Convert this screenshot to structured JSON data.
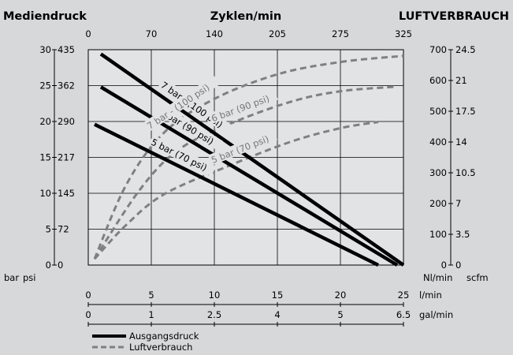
{
  "chart_data": {
    "type": "line",
    "title_left": "Mediendruck",
    "title_top": "Zyklen/min",
    "title_right": "LUFTVERBRAUCH",
    "top_axis": {
      "ticks": [
        "0",
        "70",
        "140",
        "205",
        "275",
        "325"
      ]
    },
    "left_axis": {
      "ticks_bar": [
        "0",
        "5",
        "10",
        "15",
        "20",
        "25",
        "30"
      ],
      "ticks_psi": [
        "0",
        "72",
        "145",
        "217",
        "290",
        "362",
        "435"
      ],
      "unit_bar": "bar",
      "unit_psi": "psi",
      "ylim": [
        0,
        30
      ]
    },
    "right_axis": {
      "ticks_nl": [
        "0",
        "100",
        "200",
        "300",
        "400",
        "500",
        "600",
        "700"
      ],
      "ticks_scfm": [
        "0",
        "3.5",
        "7",
        "10.5",
        "14",
        "17.5",
        "21",
        "24.5"
      ],
      "unit_nl": "Nl/min",
      "unit_scfm": "scfm",
      "ylim": [
        0,
        700
      ]
    },
    "bottom_axes": [
      {
        "ticks": [
          "0",
          "5",
          "10",
          "15",
          "20",
          "25"
        ],
        "unit": "l/min",
        "xlim": [
          0,
          25
        ]
      },
      {
        "ticks": [
          "0",
          "1",
          "2.5",
          "4",
          "5",
          "6.5"
        ],
        "unit": "gal/min",
        "xlim": [
          0,
          6.5
        ]
      }
    ],
    "xlim": [
      0,
      25
    ],
    "series": [
      {
        "name": "7 bar - (100 psi)",
        "kind": "Ausgangsdruck",
        "x": [
          1,
          25
        ],
        "y": [
          29.4,
          0
        ]
      },
      {
        "name": "6 bar (90 psi)",
        "kind": "Ausgangsdruck",
        "x": [
          1,
          24.5
        ],
        "y": [
          24.8,
          0
        ]
      },
      {
        "name": "5 bar (70 psi)",
        "kind": "Ausgangsdruck",
        "x": [
          0.5,
          23
        ],
        "y": [
          19.6,
          0
        ]
      },
      {
        "name": "7 bar - (100 psi)",
        "kind": "Luftverbrauch",
        "x": [
          0.5,
          3,
          6,
          10,
          15,
          20,
          25
        ],
        "y": [
          20,
          260,
          430,
          540,
          620,
          660,
          680
        ]
      },
      {
        "name": "6 bar (90 psi)",
        "kind": "Luftverbrauch",
        "x": [
          0.5,
          4,
          7,
          11,
          16,
          20,
          24.5
        ],
        "y": [
          20,
          240,
          370,
          455,
          530,
          565,
          580
        ]
      },
      {
        "name": "5 bar (70 psi)",
        "kind": "Luftverbrauch",
        "x": [
          0.5,
          3,
          6,
          11,
          16,
          20,
          23
        ],
        "y": [
          20,
          130,
          230,
          320,
          400,
          445,
          465
        ]
      }
    ],
    "legend": [
      {
        "label": "Ausgangsdruck",
        "style": "solid"
      },
      {
        "label": "Luftverbrauch",
        "style": "dashed"
      }
    ],
    "colors": {
      "background": "#d7d8d9",
      "plot": "#e2e3e4",
      "solid": "#000000",
      "dashed": "#808080"
    }
  }
}
